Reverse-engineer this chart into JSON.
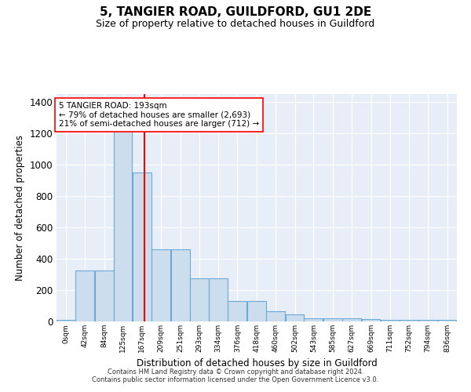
{
  "title": "5, TANGIER ROAD, GUILDFORD, GU1 2DE",
  "subtitle": "Size of property relative to detached houses in Guildford",
  "xlabel": "Distribution of detached houses by size in Guildford",
  "ylabel": "Number of detached properties",
  "footnote1": "Contains HM Land Registry data © Crown copyright and database right 2024.",
  "footnote2": "Contains public sector information licensed under the Open Government Licence v3.0.",
  "annotation_line1": "5 TANGIER ROAD: 193sqm",
  "annotation_line2": "← 79% of detached houses are smaller (2,693)",
  "annotation_line3": "21% of semi-detached houses are larger (712) →",
  "red_line_x": 193,
  "bar_color": "#ccdded",
  "bar_edgecolor": "#6aaad4",
  "background_color": "#e8eef8",
  "grid_color": "#ffffff",
  "categories": [
    0,
    42,
    84,
    125,
    167,
    209,
    251,
    293,
    334,
    376,
    418,
    460,
    502,
    543,
    585,
    627,
    669,
    711,
    752,
    794,
    836
  ],
  "values": [
    10,
    325,
    325,
    1400,
    950,
    460,
    460,
    275,
    275,
    130,
    130,
    65,
    45,
    20,
    20,
    18,
    15,
    12,
    8,
    8,
    8
  ],
  "xlim": [
    0,
    878
  ],
  "ylim": [
    0,
    1450
  ],
  "yticks": [
    0,
    200,
    400,
    600,
    800,
    1000,
    1200,
    1400
  ],
  "tick_labels": [
    "0sqm",
    "42sqm",
    "84sqm",
    "125sqm",
    "167sqm",
    "209sqm",
    "251sqm",
    "293sqm",
    "334sqm",
    "376sqm",
    "418sqm",
    "460sqm",
    "502sqm",
    "543sqm",
    "585sqm",
    "627sqm",
    "669sqm",
    "711sqm",
    "752sqm",
    "794sqm",
    "836sqm"
  ]
}
